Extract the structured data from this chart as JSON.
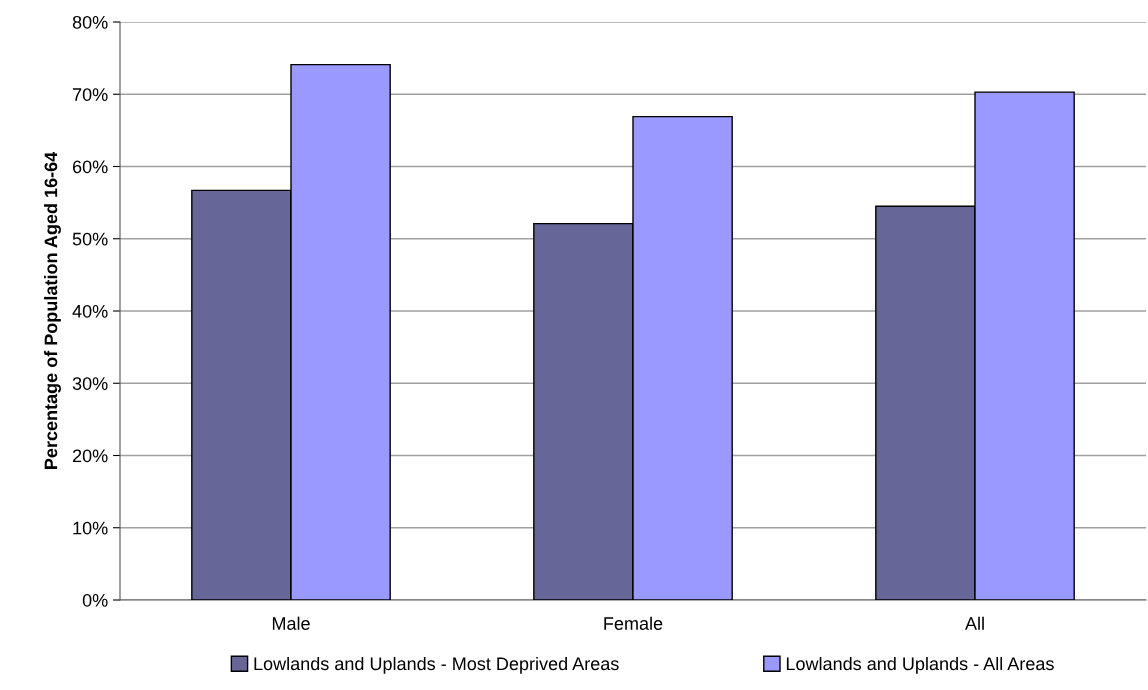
{
  "chart_data": {
    "type": "bar",
    "ylabel": "Percentage of Population Aged 16-64",
    "categories": [
      "Male",
      "Female",
      "All"
    ],
    "series": [
      {
        "name": "Lowlands and Uplands - Most Deprived Areas",
        "color": "#666699",
        "values": [
          56.7,
          52.1,
          54.5
        ]
      },
      {
        "name": "Lowlands and Uplands - All Areas",
        "color": "#9999ff",
        "values": [
          74.1,
          66.9,
          70.3
        ]
      }
    ],
    "ylim": [
      0,
      80
    ],
    "yticks": [
      {
        "value": 0,
        "label": "0%"
      },
      {
        "value": 10,
        "label": "10%"
      },
      {
        "value": 20,
        "label": "20%"
      },
      {
        "value": 30,
        "label": "30%"
      },
      {
        "value": 40,
        "label": "40%"
      },
      {
        "value": 50,
        "label": "50%"
      },
      {
        "value": 60,
        "label": "60%"
      },
      {
        "value": 70,
        "label": "70%"
      },
      {
        "value": 80,
        "label": "80%"
      }
    ],
    "grid": "y",
    "legend": "bottom"
  }
}
